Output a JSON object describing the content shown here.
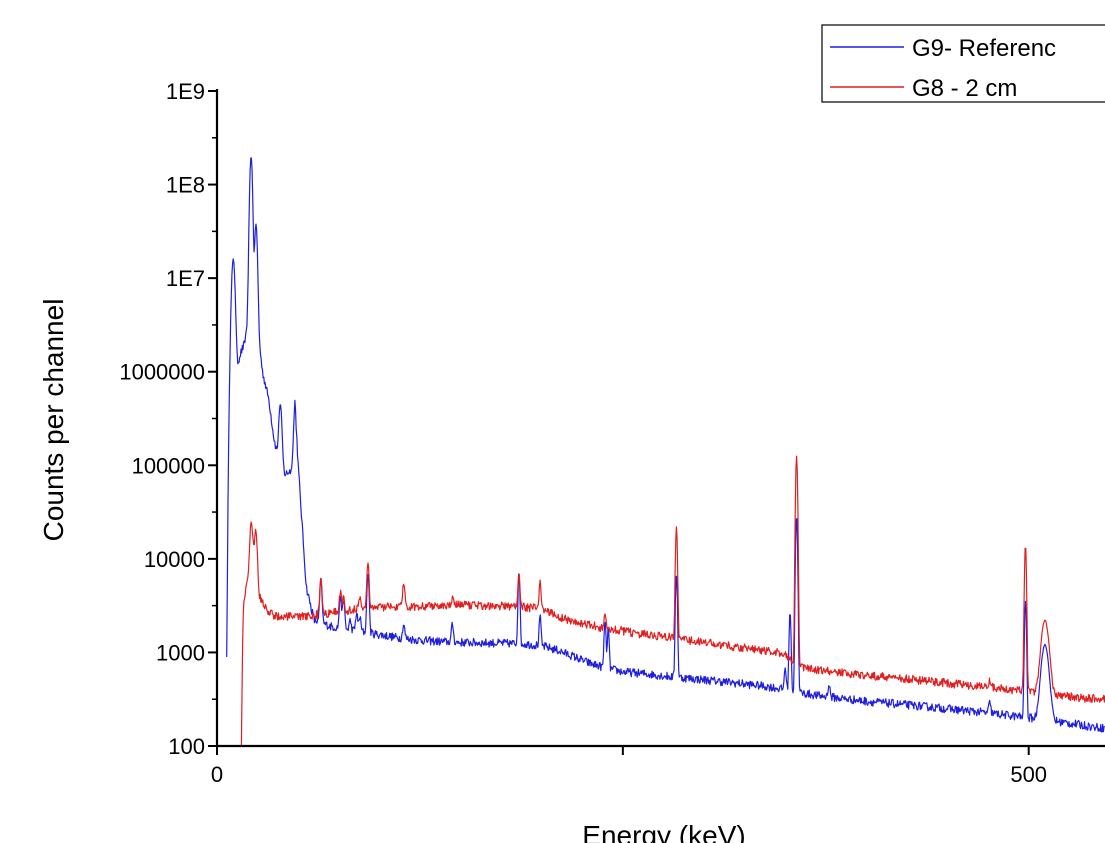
{
  "chart_data": {
    "type": "line",
    "title": "",
    "xlabel": "Energy (keV)",
    "ylabel": "Counts per channel",
    "y_scale": "log",
    "xlim": [
      0,
      547
    ],
    "ylim": [
      100,
      1000000000
    ],
    "x_ticks": [
      {
        "value": 0,
        "label": "0"
      },
      {
        "value": 250,
        "label": ""
      },
      {
        "value": 500,
        "label": "500"
      }
    ],
    "y_ticks": [
      {
        "value": 100,
        "label": "100"
      },
      {
        "value": 1000,
        "label": "1000"
      },
      {
        "value": 10000,
        "label": "10000"
      },
      {
        "value": 100000,
        "label": "100000"
      },
      {
        "value": 1000000,
        "label": "1000000"
      },
      {
        "value": 10000000,
        "label": "1E7"
      },
      {
        "value": 100000000,
        "label": "1E8"
      },
      {
        "value": 1000000000,
        "label": "1E9"
      }
    ],
    "grid": false,
    "legend_position": "top-right",
    "series": [
      {
        "name": "G9- Referenc",
        "color": "#1f1fe0",
        "baseline": [
          [
            6,
            100
          ],
          [
            7,
            50000
          ],
          [
            9,
            400000
          ],
          [
            12,
            1000000
          ],
          [
            14,
            1500000
          ],
          [
            17,
            2000000
          ],
          [
            20,
            5000000
          ],
          [
            25,
            3000000
          ],
          [
            28,
            1000000
          ],
          [
            32,
            500000
          ],
          [
            35,
            200000
          ],
          [
            38,
            110000
          ],
          [
            42,
            80000
          ],
          [
            46,
            90000
          ],
          [
            48,
            500000
          ],
          [
            50,
            100000
          ],
          [
            52,
            30000
          ],
          [
            55,
            5000
          ],
          [
            58,
            3000
          ],
          [
            60,
            2200
          ],
          [
            70,
            1900
          ],
          [
            80,
            1750
          ],
          [
            90,
            1650
          ],
          [
            100,
            1550
          ],
          [
            110,
            1450
          ],
          [
            120,
            1380
          ],
          [
            130,
            1330
          ],
          [
            140,
            1300
          ],
          [
            150,
            1280
          ],
          [
            160,
            1270
          ],
          [
            170,
            1260
          ],
          [
            180,
            1250
          ],
          [
            190,
            1230
          ],
          [
            200,
            1180
          ],
          [
            210,
            1050
          ],
          [
            220,
            900
          ],
          [
            230,
            760
          ],
          [
            240,
            680
          ],
          [
            250,
            620
          ],
          [
            260,
            600
          ],
          [
            270,
            575
          ],
          [
            280,
            550
          ],
          [
            290,
            530
          ],
          [
            300,
            510
          ],
          [
            310,
            490
          ],
          [
            320,
            470
          ],
          [
            330,
            450
          ],
          [
            340,
            430
          ],
          [
            350,
            400
          ],
          [
            360,
            370
          ],
          [
            370,
            345
          ],
          [
            380,
            330
          ],
          [
            390,
            315
          ],
          [
            400,
            300
          ],
          [
            410,
            290
          ],
          [
            420,
            280
          ],
          [
            430,
            270
          ],
          [
            440,
            260
          ],
          [
            450,
            250
          ],
          [
            460,
            240
          ],
          [
            470,
            230
          ],
          [
            480,
            220
          ],
          [
            490,
            210
          ],
          [
            500,
            200
          ],
          [
            510,
            190
          ],
          [
            520,
            180
          ],
          [
            530,
            170
          ],
          [
            540,
            160
          ],
          [
            547,
            155
          ]
        ],
        "peaks": [
          [
            10,
            16000000,
            0.9
          ],
          [
            21,
            200000000,
            0.7
          ],
          [
            24,
            38000000,
            0.7
          ],
          [
            33,
            100000,
            0.8
          ],
          [
            39,
            450000,
            0.8
          ],
          [
            43,
            70000,
            0.7
          ],
          [
            64,
            6000,
            0.6
          ],
          [
            76,
            4000,
            0.6
          ],
          [
            78,
            3600,
            0.6
          ],
          [
            82,
            2200,
            0.6
          ],
          [
            86,
            2600,
            0.6
          ],
          [
            88,
            2400,
            0.6
          ],
          [
            93,
            7000,
            0.6
          ],
          [
            115,
            2000,
            0.6
          ],
          [
            145,
            2000,
            0.6
          ],
          [
            186,
            7000,
            0.5
          ],
          [
            199,
            2500,
            0.5
          ],
          [
            239,
            2200,
            0.5
          ],
          [
            241,
            1800,
            0.5
          ],
          [
            283,
            7000,
            0.5
          ],
          [
            350,
            700,
            0.5
          ],
          [
            353,
            2700,
            0.5
          ],
          [
            357,
            29000,
            0.5
          ],
          [
            377,
            450,
            0.6
          ],
          [
            476,
            290,
            0.6
          ],
          [
            498,
            3500,
            0.5
          ],
          [
            510,
            1200,
            2.0
          ]
        ]
      },
      {
        "name": "G8 - 2 cm",
        "color": "#e01f1f",
        "baseline": [
          [
            15,
            100
          ],
          [
            16,
            2500
          ],
          [
            17,
            4000
          ],
          [
            19,
            6000
          ],
          [
            20,
            7000
          ],
          [
            22,
            12000
          ],
          [
            24,
            9000
          ],
          [
            26,
            4000
          ],
          [
            28,
            3500
          ],
          [
            30,
            2900
          ],
          [
            35,
            2500
          ],
          [
            40,
            2400
          ],
          [
            45,
            2400
          ],
          [
            50,
            2400
          ],
          [
            55,
            2450
          ],
          [
            60,
            2500
          ],
          [
            70,
            2650
          ],
          [
            80,
            2800
          ],
          [
            90,
            2950
          ],
          [
            100,
            3050
          ],
          [
            110,
            3100
          ],
          [
            120,
            3100
          ],
          [
            130,
            3150
          ],
          [
            140,
            3200
          ],
          [
            150,
            3200
          ],
          [
            160,
            3200
          ],
          [
            170,
            3150
          ],
          [
            180,
            3100
          ],
          [
            190,
            3050
          ],
          [
            200,
            2900
          ],
          [
            210,
            2450
          ],
          [
            220,
            2100
          ],
          [
            230,
            1950
          ],
          [
            240,
            1800
          ],
          [
            250,
            1700
          ],
          [
            260,
            1580
          ],
          [
            270,
            1500
          ],
          [
            280,
            1450
          ],
          [
            290,
            1350
          ],
          [
            300,
            1280
          ],
          [
            310,
            1200
          ],
          [
            320,
            1150
          ],
          [
            330,
            1100
          ],
          [
            340,
            1020
          ],
          [
            350,
            960
          ],
          [
            360,
            700
          ],
          [
            370,
            640
          ],
          [
            380,
            620
          ],
          [
            390,
            590
          ],
          [
            400,
            570
          ],
          [
            410,
            550
          ],
          [
            420,
            530
          ],
          [
            430,
            510
          ],
          [
            440,
            490
          ],
          [
            450,
            470
          ],
          [
            460,
            450
          ],
          [
            470,
            430
          ],
          [
            480,
            420
          ],
          [
            490,
            400
          ],
          [
            500,
            380
          ],
          [
            510,
            360
          ],
          [
            520,
            345
          ],
          [
            530,
            330
          ],
          [
            540,
            320
          ],
          [
            547,
            315
          ]
        ],
        "peaks": [
          [
            21,
            25000,
            0.7
          ],
          [
            24,
            20000,
            0.7
          ],
          [
            64,
            6500,
            0.6
          ],
          [
            76,
            4500,
            0.6
          ],
          [
            78,
            3800,
            0.6
          ],
          [
            88,
            4000,
            0.6
          ],
          [
            93,
            9000,
            0.6
          ],
          [
            115,
            5500,
            0.6
          ],
          [
            145,
            3800,
            0.5
          ],
          [
            186,
            7000,
            0.5
          ],
          [
            199,
            6000,
            0.5
          ],
          [
            239,
            2700,
            0.5
          ],
          [
            283,
            22000,
            0.5
          ],
          [
            357,
            125000,
            0.5
          ],
          [
            476,
            500,
            0.6
          ],
          [
            498,
            14000,
            0.5
          ],
          [
            510,
            2200,
            2.0
          ]
        ]
      }
    ]
  }
}
